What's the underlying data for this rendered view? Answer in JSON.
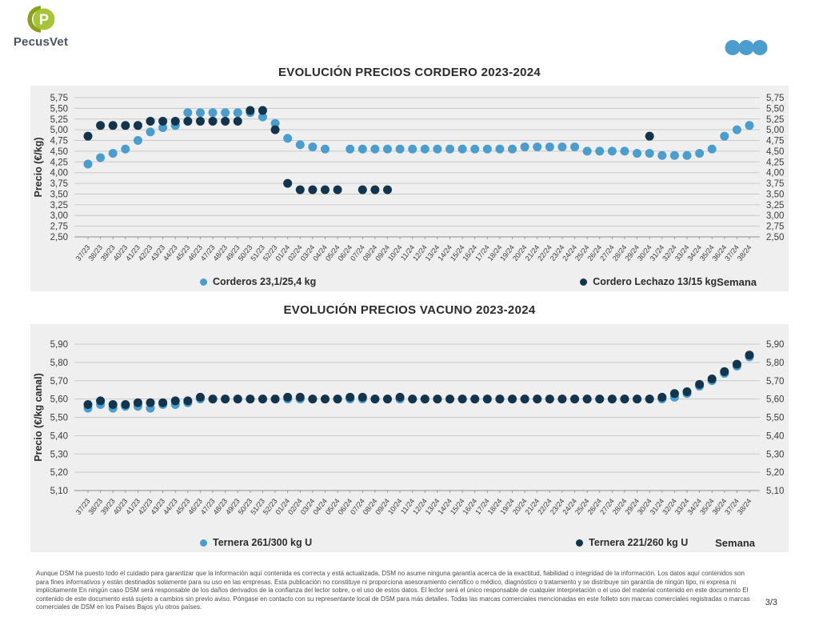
{
  "header": {
    "logo": {
      "text": "PecusVet"
    },
    "menu_dots_color": "#4A9DCC"
  },
  "theme": {
    "panel_bg": "#EFEFEF",
    "grid": "#C9C9C9",
    "axis": "#8C8C8C",
    "tick_text": "#3B3B3B",
    "title_text": "#2B2B2B",
    "logo_green_dark": "#8E9E1E",
    "logo_green_light": "#A6C437",
    "series_blue": "#4A9DCC",
    "series_navy": "#13344D"
  },
  "chart_data": [
    {
      "type": "scatter",
      "title": "EVOLUCIÓN PRECIOS CORDERO 2023-2024",
      "ylabel": "Precio (€/kg)",
      "xlabel": "Semana",
      "ylim": [
        2.5,
        5.75
      ],
      "grid": true,
      "legend_position": "bottom",
      "ytick_labels": [
        "5,75",
        "5,50",
        "5,25",
        "5,00",
        "4,75",
        "4,50",
        "4,25",
        "4,00",
        "3,75",
        "3,50",
        "3,25",
        "3,00",
        "2,75",
        "2,50"
      ],
      "categories": [
        "37/23",
        "38/23",
        "39/23",
        "40/23",
        "41/23",
        "42/23",
        "43/23",
        "44/23",
        "45/23",
        "46/23",
        "47/23",
        "48/23",
        "49/23",
        "50/23",
        "51/23",
        "52/23",
        "01/24",
        "02/24",
        "03/24",
        "04/24",
        "05/24",
        "06/24",
        "07/24",
        "08/24",
        "09/24",
        "10/24",
        "11/24",
        "12/24",
        "13/24",
        "14/24",
        "15/24",
        "16/24",
        "17/24",
        "18/24",
        "19/24",
        "20/24",
        "21/24",
        "22/24",
        "23/24",
        "24/24",
        "25/24",
        "26/24",
        "27/24",
        "28/24",
        "29/24",
        "30/24",
        "31/24",
        "32/24",
        "33/24",
        "34/24",
        "35/24",
        "36/24",
        "37/24",
        "38/24"
      ],
      "series": [
        {
          "name": "Corderos 23,1/25,4 kg",
          "color": "#4A9DCC",
          "values": [
            4.2,
            4.35,
            4.45,
            4.55,
            4.75,
            4.95,
            5.05,
            5.1,
            5.4,
            5.4,
            5.4,
            5.4,
            5.4,
            5.4,
            5.3,
            5.15,
            4.8,
            4.65,
            4.6,
            4.55,
            null,
            4.55,
            4.55,
            4.55,
            4.55,
            4.55,
            4.55,
            4.55,
            4.55,
            4.55,
            4.55,
            4.55,
            4.55,
            4.55,
            4.55,
            4.6,
            4.6,
            4.6,
            4.6,
            4.6,
            4.5,
            4.5,
            4.5,
            4.5,
            4.45,
            4.45,
            4.4,
            4.4,
            4.4,
            4.45,
            4.55,
            4.85,
            5.0,
            5.1
          ]
        },
        {
          "name": "Cordero Lechazo 13/15 kg",
          "color": "#13344D",
          "values": [
            4.85,
            5.1,
            5.1,
            5.1,
            5.1,
            5.2,
            5.2,
            5.2,
            5.2,
            5.2,
            5.2,
            5.2,
            5.2,
            5.45,
            5.45,
            5.0,
            3.75,
            3.6,
            3.6,
            3.6,
            3.6,
            null,
            3.6,
            3.6,
            3.6,
            null,
            null,
            null,
            null,
            null,
            null,
            null,
            null,
            null,
            null,
            null,
            null,
            null,
            null,
            null,
            null,
            null,
            null,
            null,
            null,
            4.85,
            null,
            null,
            null,
            null,
            null,
            null,
            null,
            null
          ]
        }
      ]
    },
    {
      "type": "scatter",
      "title": "EVOLUCIÓN PRECIOS VACUNO 2023-2024",
      "ylabel": "Precio (€/kg canal)",
      "xlabel": "Semana",
      "ylim": [
        5.1,
        5.9
      ],
      "grid": true,
      "legend_position": "bottom",
      "ytick_labels": [
        "5,90",
        "5,80",
        "5,70",
        "5,60",
        "5,50",
        "5,40",
        "5,30",
        "5,20",
        "5,10"
      ],
      "categories": [
        "37/23",
        "38/23",
        "39/23",
        "40/23",
        "41/23",
        "42/23",
        "43/23",
        "44/23",
        "45/23",
        "46/23",
        "47/23",
        "48/23",
        "49/23",
        "50/23",
        "51/23",
        "52/23",
        "01/24",
        "02/24",
        "03/24",
        "04/24",
        "05/24",
        "06/24",
        "07/24",
        "08/24",
        "09/24",
        "10/24",
        "11/24",
        "12/24",
        "13/24",
        "14/24",
        "15/24",
        "16/24",
        "17/24",
        "18/24",
        "19/24",
        "20/24",
        "21/24",
        "22/24",
        "23/24",
        "24/24",
        "25/24",
        "26/24",
        "27/24",
        "28/24",
        "29/24",
        "30/24",
        "31/24",
        "32/24",
        "33/24",
        "34/24",
        "35/24",
        "36/24",
        "37/24",
        "38/24"
      ],
      "series": [
        {
          "name": "Ternera 261/300 kg U",
          "color": "#4A9DCC",
          "values": [
            5.55,
            5.57,
            5.55,
            5.56,
            5.56,
            5.55,
            5.57,
            5.57,
            5.58,
            5.6,
            5.6,
            5.6,
            5.6,
            5.6,
            5.6,
            5.6,
            5.6,
            5.6,
            5.6,
            5.6,
            5.6,
            5.6,
            5.6,
            5.6,
            5.6,
            5.6,
            5.6,
            5.6,
            5.6,
            5.6,
            5.6,
            5.6,
            5.6,
            5.6,
            5.6,
            5.6,
            5.6,
            5.6,
            5.6,
            5.6,
            5.6,
            5.6,
            5.6,
            5.6,
            5.6,
            5.6,
            5.6,
            5.61,
            5.63,
            5.67,
            5.7,
            5.74,
            5.78,
            5.83
          ]
        },
        {
          "name": "Ternera 221/260 kg U",
          "color": "#13344D",
          "values": [
            5.57,
            5.59,
            5.57,
            5.57,
            5.58,
            5.58,
            5.58,
            5.59,
            5.59,
            5.61,
            5.6,
            5.6,
            5.6,
            5.6,
            5.6,
            5.6,
            5.61,
            5.61,
            5.6,
            5.6,
            5.6,
            5.61,
            5.61,
            5.6,
            5.6,
            5.61,
            5.6,
            5.6,
            5.6,
            5.6,
            5.6,
            5.6,
            5.6,
            5.6,
            5.6,
            5.6,
            5.6,
            5.6,
            5.6,
            5.6,
            5.6,
            5.6,
            5.6,
            5.6,
            5.6,
            5.6,
            5.61,
            5.63,
            5.64,
            5.68,
            5.71,
            5.75,
            5.79,
            5.84
          ]
        }
      ]
    }
  ],
  "footer": {
    "disclaimer": "Aunque DSM ha puesto todo el cuidado para garantizar que la información aquí contenida es correcta y está actualizada, DSM no asume ninguna garantía acerca de la exactitud, fiabilidad o integridad de la información. Los datos aquí contenidos son para fines informativos y están destinados solamente para su uso en las empresas. Esta publicación no constituye ni proporciona asesoramiento científico o médico, diagnóstico o tratamiento y se distribuye sin garantía de ningún tipo, ni expresa ni implícitamente En ningún caso DSM será responsable de los daños derivados de la confianza del lector sobre, o el uso de estos datos. El lector será el único responsable de cualquier interpretación o el uso del material contenido en este documento El contenido de este documento está sujeto a cambios sin previo aviso. Póngase en contacto con su representante local de DSM para más detalles. Todas las marcas comerciales mencionadas en este folleto son marcas comerciales registradas o marcas comerciales de DSM en los Países Bajos y/u otros países.",
    "page_number": "3/3"
  }
}
